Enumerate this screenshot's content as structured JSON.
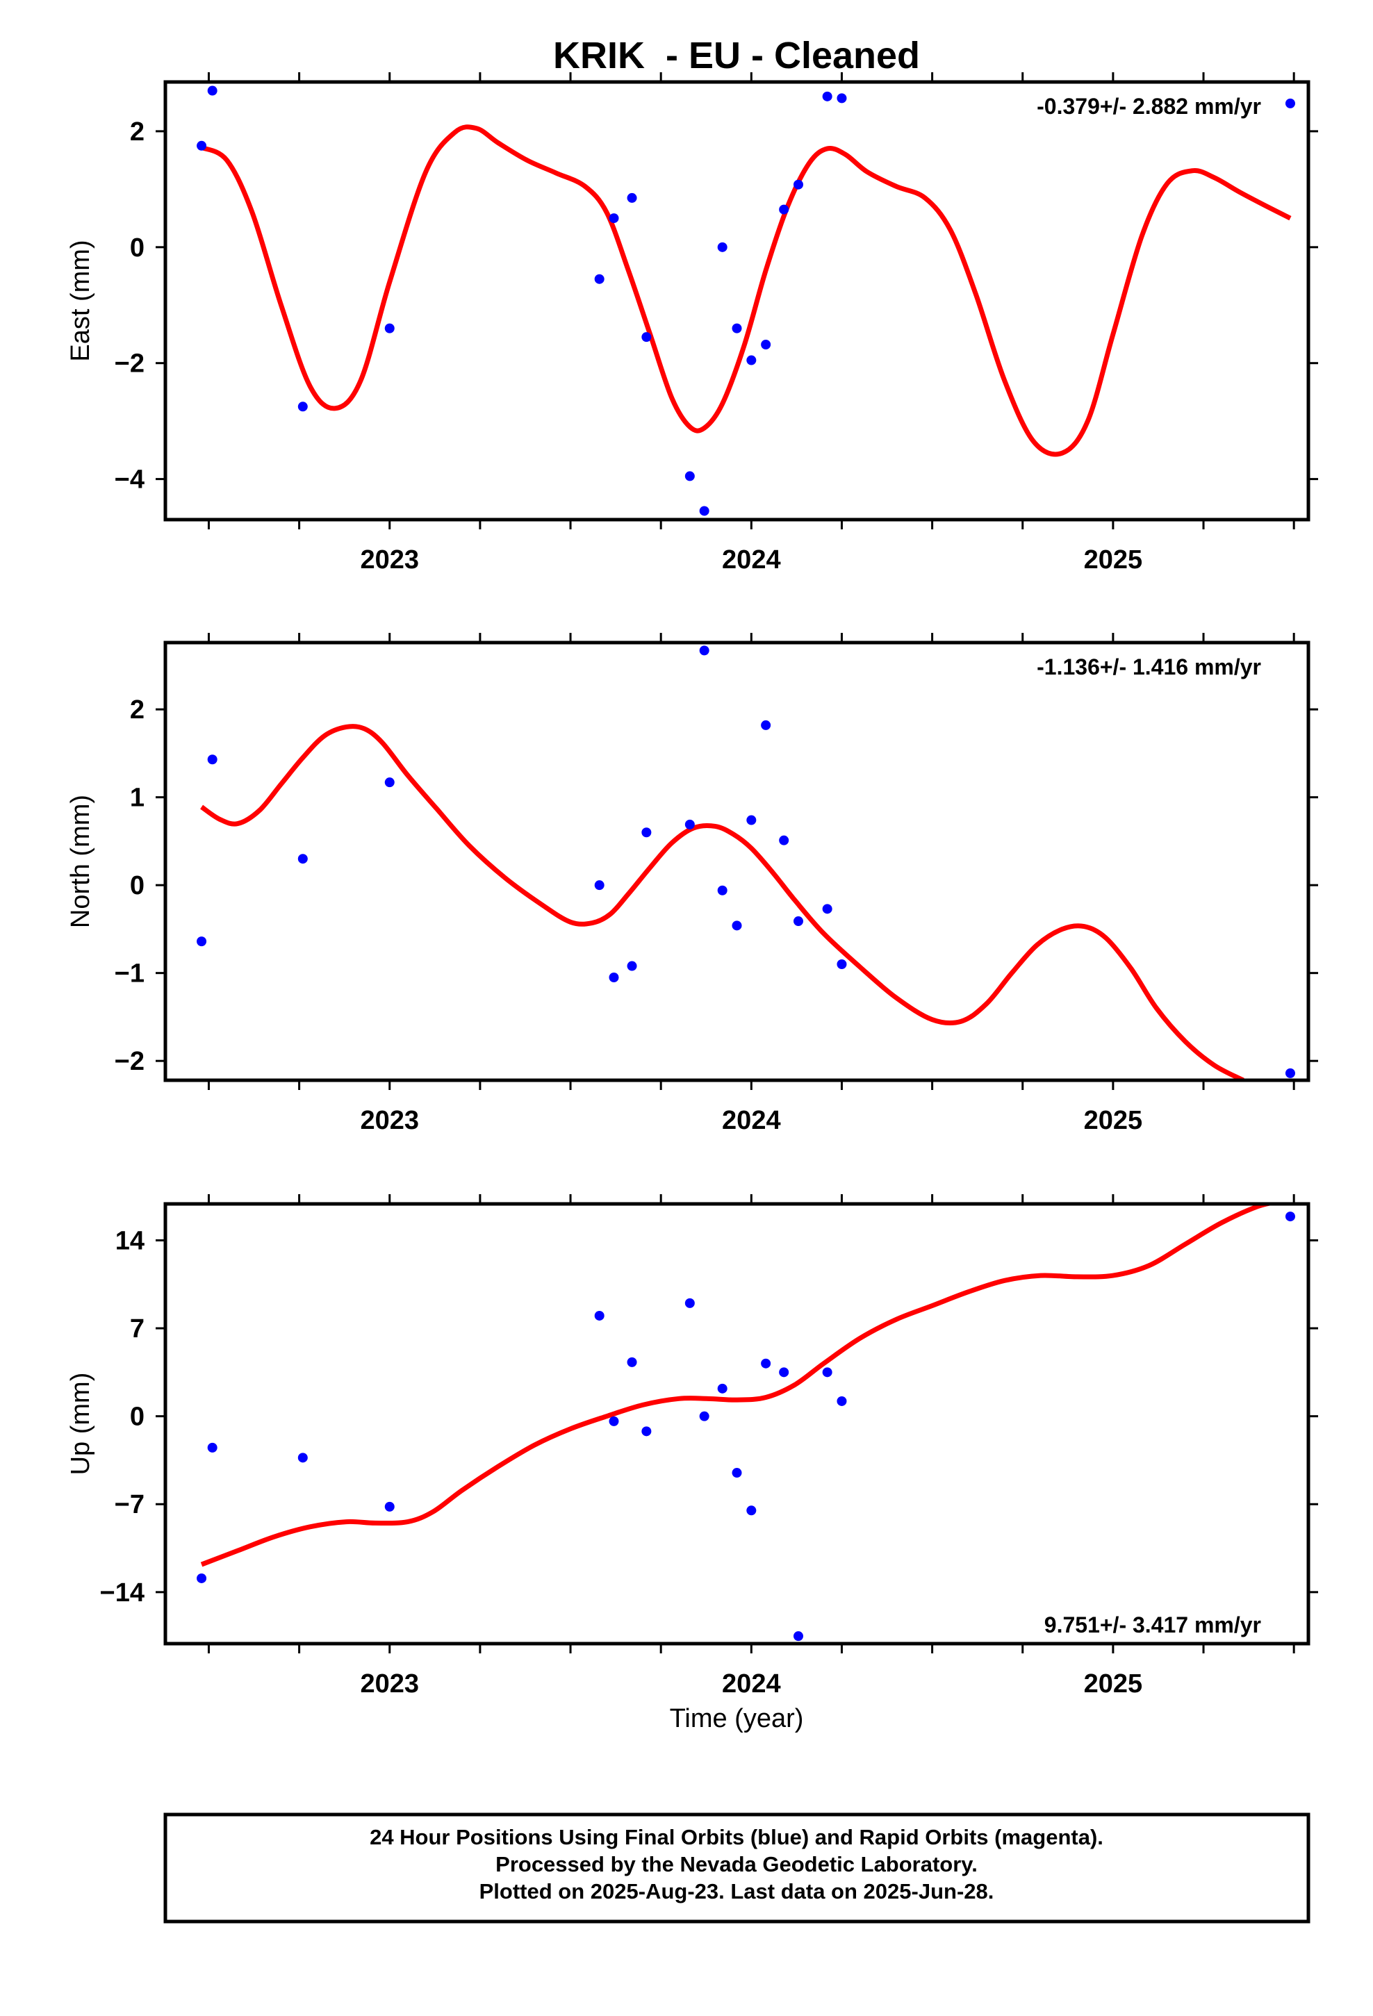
{
  "title": "KRIK  - EU - Cleaned",
  "footer": {
    "lines": [
      "24 Hour Positions Using Final Orbits (blue) and Rapid Orbits (magenta).",
      "Processed by the Nevada Geodetic Laboratory.",
      "Plotted on 2025-Aug-23. Last data on 2025-Jun-28."
    ]
  },
  "colors": {
    "points": "#0000ff",
    "fit": "#ff0000",
    "axes": "#000000"
  },
  "chart_data": [
    {
      "type": "scatter",
      "name": "east",
      "ylabel": "East (mm)",
      "xlabel": "",
      "rate_label": "-0.379+/- 2.882 mm/yr",
      "rate_position": "top-right",
      "xlim": [
        2022.38,
        2025.54
      ],
      "ylim": [
        -4.7,
        2.85
      ],
      "yticks": [
        2,
        0,
        -2,
        -4
      ],
      "xticks": [
        2023,
        2024,
        2025
      ],
      "xticks_labels": [
        "2023",
        "2024",
        "2025"
      ],
      "series": [
        {
          "kind": "points",
          "x": [
            2022.48,
            2022.51,
            2022.76,
            2023.0,
            2023.58,
            2023.62,
            2023.67,
            2023.71,
            2023.83,
            2023.87,
            2023.92,
            2023.96,
            2024.0,
            2024.04,
            2024.09,
            2024.13,
            2024.21,
            2024.25,
            2025.49
          ],
          "y": [
            1.75,
            2.7,
            -2.75,
            -1.4,
            -0.55,
            0.5,
            0.85,
            -1.55,
            -3.95,
            -4.55,
            0.0,
            -1.4,
            -1.95,
            -1.68,
            0.65,
            1.08,
            2.6,
            2.57,
            2.48
          ]
        },
        {
          "kind": "fit",
          "x": [
            2022.48,
            2022.55,
            2022.62,
            2022.7,
            2022.78,
            2022.85,
            2022.92,
            2023.0,
            2023.1,
            2023.18,
            2023.24,
            2023.3,
            2023.38,
            2023.46,
            2023.54,
            2023.6,
            2023.66,
            2023.72,
            2023.78,
            2023.83,
            2023.87,
            2023.92,
            2023.98,
            2024.04,
            2024.1,
            2024.16,
            2024.21,
            2024.26,
            2024.32,
            2024.4,
            2024.48,
            2024.55,
            2024.62,
            2024.7,
            2024.78,
            2024.86,
            2024.93,
            2025.0,
            2025.08,
            2025.15,
            2025.22,
            2025.28,
            2025.35,
            2025.42,
            2025.49
          ],
          "y": [
            1.72,
            1.5,
            0.6,
            -1.0,
            -2.4,
            -2.78,
            -2.3,
            -0.6,
            1.3,
            1.98,
            2.05,
            1.8,
            1.5,
            1.28,
            1.05,
            0.6,
            -0.4,
            -1.5,
            -2.6,
            -3.1,
            -3.12,
            -2.7,
            -1.7,
            -0.4,
            0.7,
            1.45,
            1.7,
            1.6,
            1.3,
            1.05,
            0.85,
            0.3,
            -0.8,
            -2.3,
            -3.35,
            -3.55,
            -3.0,
            -1.5,
            0.2,
            1.1,
            1.32,
            1.2,
            0.95,
            0.72,
            0.5
          ]
        }
      ]
    },
    {
      "type": "scatter",
      "name": "north",
      "ylabel": "North (mm)",
      "xlabel": "",
      "rate_label": "-1.136+/- 1.416 mm/yr",
      "rate_position": "top-right",
      "xlim": [
        2022.38,
        2025.54
      ],
      "ylim": [
        -2.22,
        2.76
      ],
      "yticks": [
        2,
        1,
        0,
        -1,
        -2
      ],
      "xticks": [
        2023,
        2024,
        2025
      ],
      "xticks_labels": [
        "2023",
        "2024",
        "2025"
      ],
      "series": [
        {
          "kind": "points",
          "x": [
            2022.48,
            2022.51,
            2022.76,
            2023.0,
            2023.58,
            2023.62,
            2023.67,
            2023.71,
            2023.83,
            2023.87,
            2023.92,
            2023.96,
            2024.0,
            2024.04,
            2024.09,
            2024.13,
            2024.21,
            2024.25,
            2025.49
          ],
          "y": [
            -0.64,
            1.43,
            0.3,
            1.17,
            0.0,
            -1.05,
            -0.92,
            0.6,
            0.69,
            2.67,
            -0.06,
            -0.46,
            0.74,
            1.82,
            0.51,
            -0.41,
            -0.27,
            -0.9,
            -2.14
          ]
        },
        {
          "kind": "fit",
          "x": [
            2022.48,
            2022.53,
            2022.58,
            2022.64,
            2022.7,
            2022.76,
            2022.82,
            2022.88,
            2022.93,
            2022.98,
            2023.05,
            2023.13,
            2023.22,
            2023.32,
            2023.42,
            2023.5,
            2023.56,
            2023.61,
            2023.66,
            2023.72,
            2023.78,
            2023.84,
            2023.9,
            2023.95,
            2024.0,
            2024.06,
            2024.12,
            2024.2,
            2024.3,
            2024.4,
            2024.5,
            2024.58,
            2024.65,
            2024.72,
            2024.79,
            2024.86,
            2024.92,
            2024.98,
            2025.05,
            2025.12,
            2025.2,
            2025.28,
            2025.36
          ],
          "y": [
            0.89,
            0.75,
            0.7,
            0.85,
            1.15,
            1.45,
            1.7,
            1.8,
            1.78,
            1.62,
            1.25,
            0.87,
            0.45,
            0.08,
            -0.22,
            -0.42,
            -0.43,
            -0.33,
            -0.1,
            0.2,
            0.48,
            0.65,
            0.67,
            0.58,
            0.42,
            0.14,
            -0.17,
            -0.55,
            -0.93,
            -1.28,
            -1.53,
            -1.55,
            -1.35,
            -1.0,
            -0.68,
            -0.5,
            -0.47,
            -0.6,
            -0.95,
            -1.4,
            -1.78,
            -2.05,
            -2.22
          ]
        }
      ]
    },
    {
      "type": "scatter",
      "name": "up",
      "ylabel": "Up (mm)",
      "xlabel": "Time (year)",
      "rate_label": "9.751+/- 3.417 mm/yr",
      "rate_position": "bottom-right",
      "xlim": [
        2022.38,
        2025.54
      ],
      "ylim": [
        -18.1,
        16.9
      ],
      "yticks": [
        14,
        7,
        0,
        -7,
        -14
      ],
      "xticks": [
        2023,
        2024,
        2025
      ],
      "xticks_labels": [
        "2023",
        "2024",
        "2025"
      ],
      "series": [
        {
          "kind": "points",
          "x": [
            2022.48,
            2022.51,
            2022.76,
            2023.0,
            2023.58,
            2023.62,
            2023.67,
            2023.71,
            2023.83,
            2023.87,
            2023.92,
            2023.96,
            2024.0,
            2024.04,
            2024.09,
            2024.13,
            2024.21,
            2024.25,
            2025.49
          ],
          "y": [
            -12.9,
            -2.5,
            -3.3,
            -7.2,
            8.0,
            -0.4,
            4.3,
            -1.2,
            9.0,
            0.0,
            2.2,
            -4.5,
            -7.5,
            4.2,
            3.5,
            -17.5,
            3.5,
            1.2,
            15.9
          ]
        },
        {
          "kind": "fit",
          "x": [
            2022.48,
            2022.58,
            2022.68,
            2022.78,
            2022.88,
            2022.96,
            2023.05,
            2023.12,
            2023.2,
            2023.3,
            2023.4,
            2023.5,
            2023.6,
            2023.7,
            2023.8,
            2023.88,
            2023.96,
            2024.04,
            2024.12,
            2024.2,
            2024.3,
            2024.4,
            2024.5,
            2024.6,
            2024.7,
            2024.8,
            2024.9,
            2025.0,
            2025.1,
            2025.2,
            2025.3,
            2025.4,
            2025.46
          ],
          "y": [
            -11.8,
            -10.7,
            -9.6,
            -8.8,
            -8.4,
            -8.5,
            -8.4,
            -7.6,
            -5.9,
            -4.0,
            -2.3,
            -1.0,
            0.0,
            0.9,
            1.4,
            1.4,
            1.3,
            1.5,
            2.5,
            4.2,
            6.2,
            7.7,
            8.8,
            9.9,
            10.8,
            11.2,
            11.1,
            11.2,
            12.0,
            13.7,
            15.4,
            16.7,
            17.1
          ]
        }
      ]
    }
  ]
}
